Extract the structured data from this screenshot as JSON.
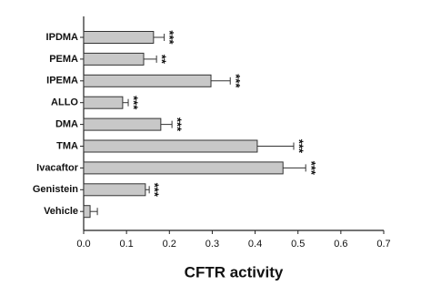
{
  "chart_data": {
    "type": "bar",
    "orientation": "horizontal",
    "x_label": "CFTR activity",
    "categories": [
      "IPDMA",
      "PEMA",
      "IPEMA",
      "ALLO",
      "DMA",
      "TMA",
      "Ivacaftor",
      "Genistein",
      "Vehicle"
    ],
    "series": [
      {
        "color": "#c8c8c8",
        "values": [
          0.163,
          0.14,
          0.297,
          0.091,
          0.18,
          0.405,
          0.465,
          0.144,
          0.015
        ],
        "errors": [
          0.025,
          0.03,
          0.045,
          0.013,
          0.026,
          0.085,
          0.053,
          0.009,
          0.017
        ],
        "significance": [
          "***",
          "**",
          "***",
          "***",
          "***",
          "***",
          "***",
          "***",
          null
        ]
      }
    ],
    "xlim": [
      0,
      0.7
    ],
    "xticks": [
      {
        "value": 0,
        "label": "0.0"
      },
      0.1,
      0.2,
      0.3,
      0.4,
      0.5,
      0.6,
      0.7
    ]
  }
}
